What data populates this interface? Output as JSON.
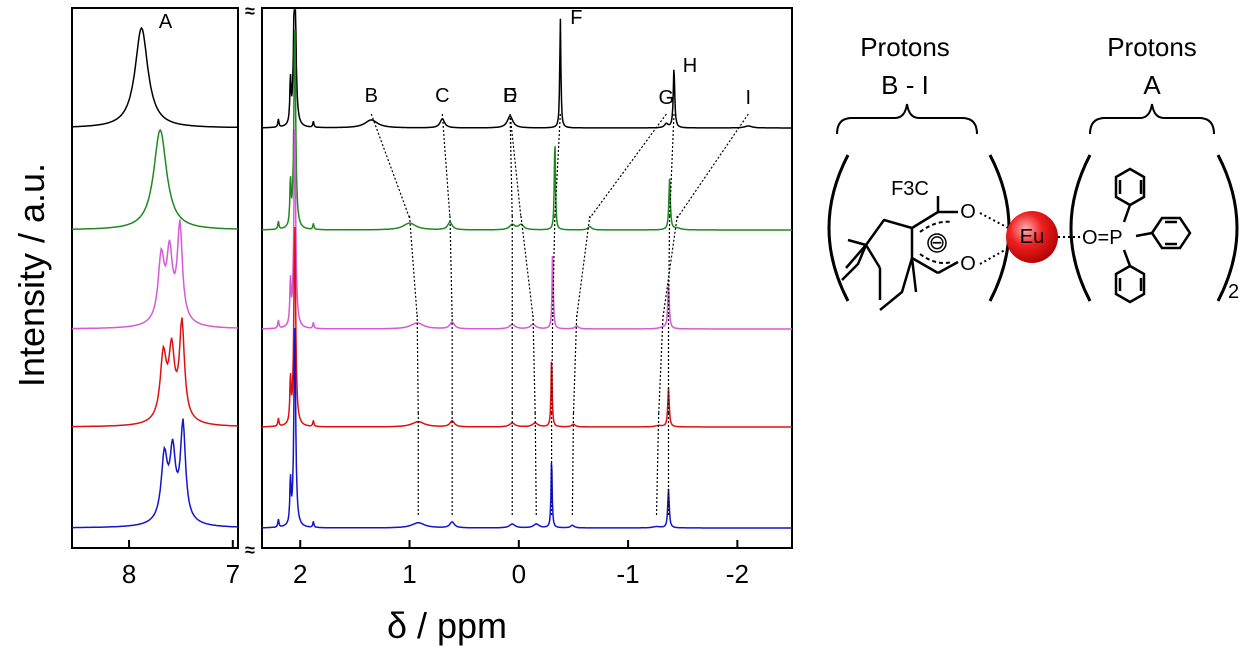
{
  "chart_data": {
    "type": "line",
    "title": "",
    "xlabel": "δ / ppm",
    "ylabel": "Intensity / a.u.",
    "x_reversed": true,
    "broken_axis": {
      "break_marker": "≈",
      "left_panel": {
        "xlim": [
          8.55,
          6.95
        ],
        "ticks": [
          8,
          7
        ],
        "tick_labels": [
          "8",
          "7"
        ]
      },
      "right_panel": {
        "xlim": [
          2.35,
          -2.5
        ],
        "ticks": [
          2,
          1,
          0,
          -1,
          -2
        ],
        "tick_labels": [
          "2",
          "1",
          "0",
          "-1",
          "-2"
        ]
      }
    },
    "series_colors": [
      "#000000",
      "#1e8a1e",
      "#d65ad6",
      "#e01010",
      "#1414cc"
    ],
    "series_count": 5,
    "peaks": [
      {
        "label": "A",
        "shifts": [
          7.88,
          7.7,
          7.55,
          7.53,
          7.52
        ]
      },
      {
        "label": "B",
        "shifts": [
          1.35,
          1.0,
          0.93,
          0.92,
          0.92
        ]
      },
      {
        "label": "C",
        "shifts": [
          0.7,
          0.63,
          0.61,
          0.61,
          0.61
        ]
      },
      {
        "label": "D",
        "shifts": [
          0.08,
          -0.02,
          -0.13,
          -0.15,
          -0.16
        ]
      },
      {
        "label": "E",
        "shifts": [
          0.08,
          0.06,
          0.06,
          0.06,
          0.06
        ]
      },
      {
        "label": "F",
        "shifts": [
          -0.38,
          -0.33,
          -0.31,
          -0.3,
          -0.3
        ]
      },
      {
        "label": "G",
        "shifts": [
          -1.35,
          -0.65,
          -0.53,
          -0.5,
          -0.49
        ]
      },
      {
        "label": "H",
        "shifts": [
          -1.42,
          -1.38,
          -1.37,
          -1.37,
          -1.37
        ]
      },
      {
        "label": "I",
        "shifts": [
          -2.1,
          -1.45,
          -1.32,
          -1.28,
          -1.26
        ]
      }
    ]
  },
  "structure": {
    "group_left_title_1": "Protons",
    "group_left_title_2": "B - I",
    "group_right_title_1": "Protons",
    "group_right_title_2": "A",
    "cf3_label": "F3C",
    "oxygen_label": "O",
    "charge_label": "⊖",
    "metal_label": "Eu",
    "phosphine_oxide_label": "O=P",
    "subscript_left": "3",
    "subscript_right": "2",
    "metal_color": "#e01818"
  }
}
